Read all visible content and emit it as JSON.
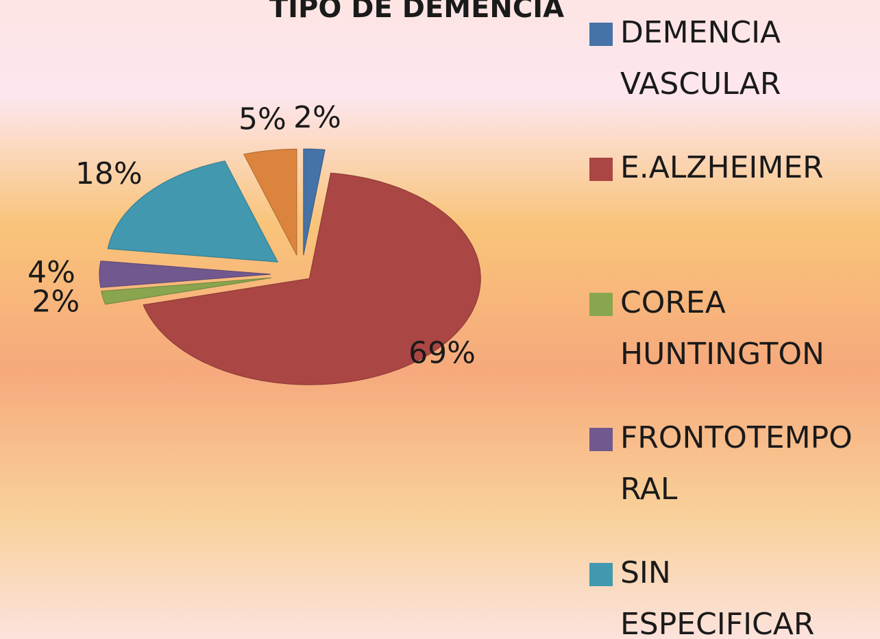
{
  "chart_data": {
    "type": "pie",
    "title": "TIPO DE DEMENCIA",
    "categories": [
      "DEMENCIA VASCULAR",
      "E.ALZHEIMER",
      "COREA HUNTINGTON",
      "FRONTOTEMPORAL",
      "SIN ESPECIFICAR",
      null
    ],
    "values": [
      2,
      69,
      2,
      4,
      18,
      5
    ],
    "value_labels": [
      "2%",
      "69%",
      "2%",
      "4%",
      "18%",
      "5%"
    ],
    "colors": [
      "#4572a7",
      "#aa4643",
      "#89a54e",
      "#71588f",
      "#4198af",
      "#db843d"
    ],
    "legend": "right"
  }
}
